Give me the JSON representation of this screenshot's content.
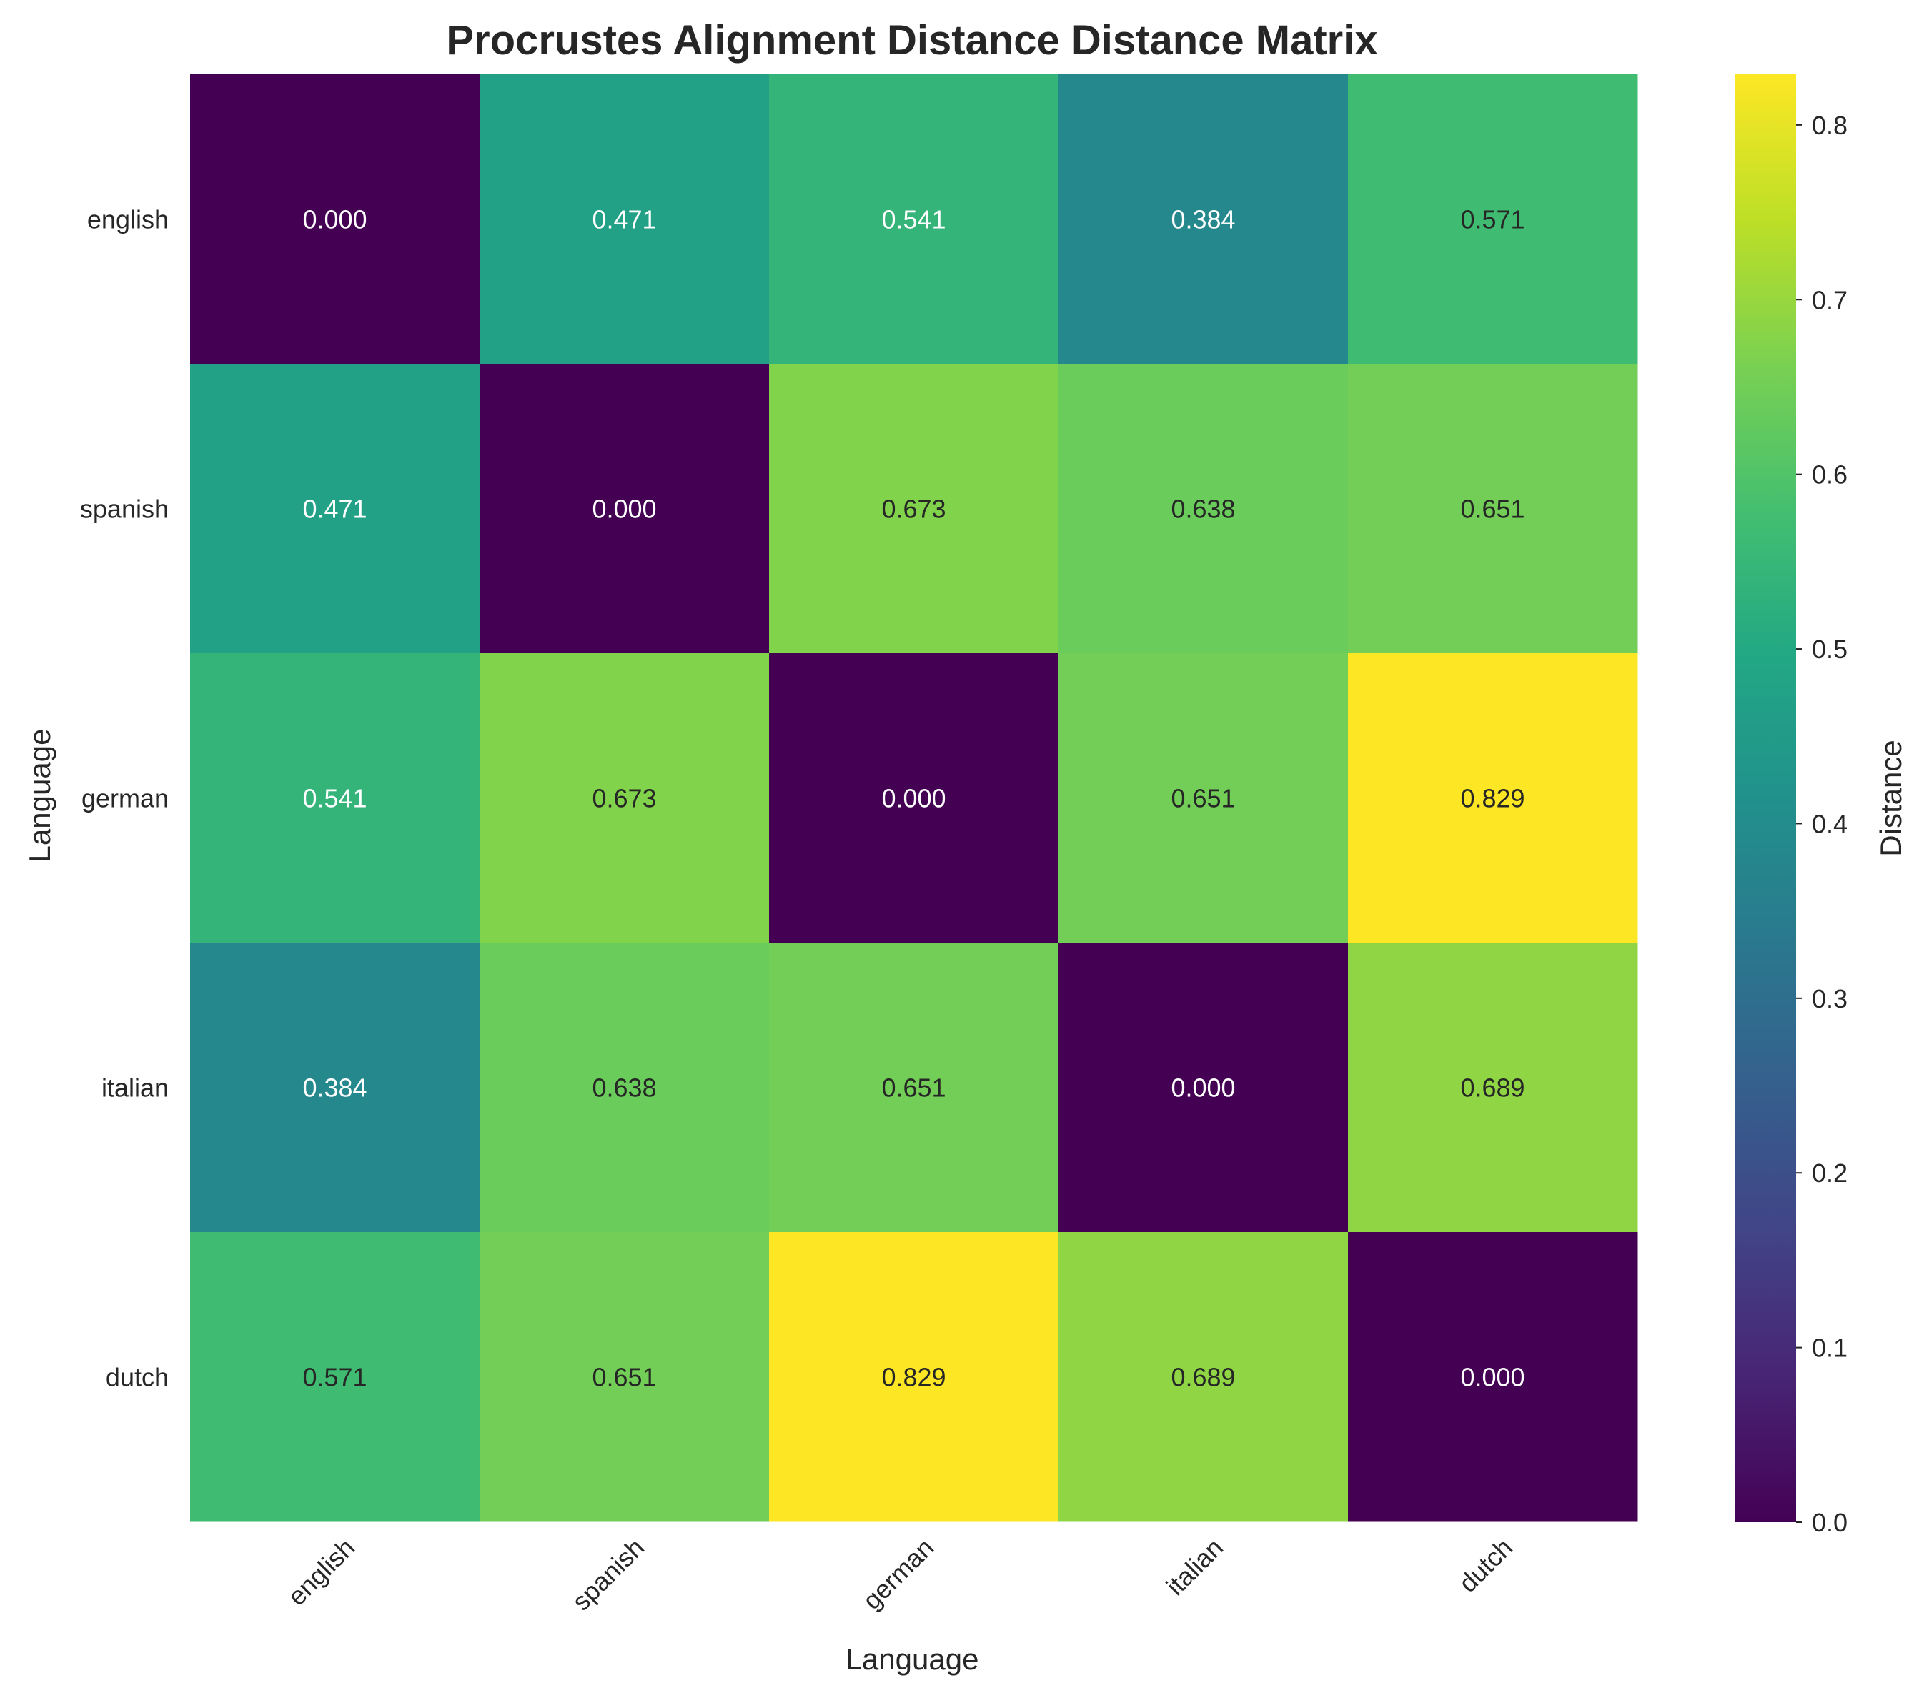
{
  "chart_data": {
    "type": "heatmap",
    "title": "Procrustes Alignment Distance Distance Matrix",
    "xlabel": "Language",
    "ylabel": "Language",
    "x_categories": [
      "english",
      "spanish",
      "german",
      "italian",
      "dutch"
    ],
    "y_categories": [
      "english",
      "spanish",
      "german",
      "italian",
      "dutch"
    ],
    "values": [
      [
        0.0,
        0.471,
        0.541,
        0.384,
        0.571
      ],
      [
        0.471,
        0.0,
        0.673,
        0.638,
        0.651
      ],
      [
        0.541,
        0.673,
        0.0,
        0.651,
        0.829
      ],
      [
        0.384,
        0.638,
        0.651,
        0.0,
        0.689
      ],
      [
        0.571,
        0.651,
        0.829,
        0.689,
        0.0
      ]
    ],
    "cell_labels": [
      [
        "0.000",
        "0.471",
        "0.541",
        "0.384",
        "0.571"
      ],
      [
        "0.471",
        "0.000",
        "0.673",
        "0.638",
        "0.651"
      ],
      [
        "0.541",
        "0.673",
        "0.000",
        "0.651",
        "0.829"
      ],
      [
        "0.384",
        "0.638",
        "0.651",
        "0.000",
        "0.689"
      ],
      [
        "0.571",
        "0.651",
        "0.829",
        "0.689",
        "0.000"
      ]
    ],
    "colormap": "viridis",
    "colorbar": {
      "label": "Distance",
      "range": [
        0,
        0.829
      ],
      "ticks": [
        "0.0",
        "0.1",
        "0.2",
        "0.3",
        "0.4",
        "0.5",
        "0.6",
        "0.7",
        "0.8"
      ],
      "tick_values": [
        0,
        0.1,
        0.2,
        0.3,
        0.4,
        0.5,
        0.6,
        0.7,
        0.8
      ]
    },
    "grid": false
  }
}
